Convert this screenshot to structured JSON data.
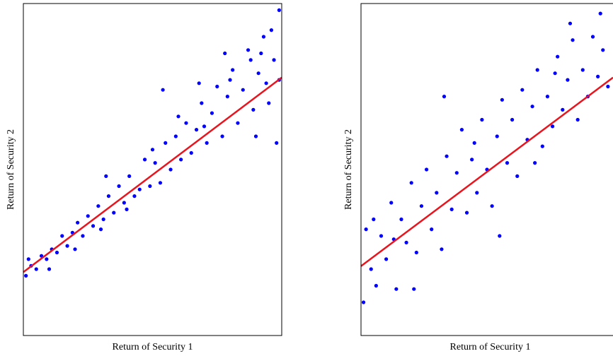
{
  "chart_data": [
    {
      "type": "scatter",
      "xlabel": "Return of Security 1",
      "ylabel": "Return of Security 2",
      "xlim": [
        0,
        10
      ],
      "ylim": [
        0,
        10
      ],
      "series": [
        {
          "type": "scatter",
          "color": "#0000ff",
          "x": [
            0.1,
            0.3,
            0.5,
            0.7,
            0.9,
            1.1,
            1.3,
            1.5,
            1.7,
            1.9,
            2.1,
            2.3,
            2.5,
            2.7,
            2.9,
            3.1,
            3.3,
            3.5,
            3.7,
            3.9,
            4.1,
            4.3,
            4.5,
            4.7,
            4.9,
            5.1,
            5.3,
            5.5,
            5.7,
            5.9,
            6.1,
            6.3,
            6.5,
            6.7,
            6.9,
            7.1,
            7.3,
            7.5,
            7.7,
            7.9,
            8.1,
            8.3,
            8.5,
            8.7,
            8.9,
            9.1,
            9.3,
            9.5,
            9.7,
            9.9,
            9.8,
            9.6,
            8.8,
            7.8,
            6.8,
            5.4,
            3.2,
            9.0,
            4.0,
            2.0,
            0.2,
            1.0,
            8.0,
            7.0,
            6.0,
            5.0,
            3.0,
            9.4,
            9.9,
            9.2
          ],
          "values": [
            1.8,
            2.1,
            2.0,
            2.4,
            2.3,
            2.6,
            2.5,
            3.0,
            2.7,
            3.1,
            3.4,
            3.0,
            3.6,
            3.3,
            3.9,
            3.5,
            4.2,
            3.7,
            4.5,
            4.0,
            4.8,
            4.2,
            4.4,
            5.3,
            4.5,
            5.2,
            4.6,
            5.8,
            5.0,
            6.0,
            5.3,
            6.4,
            5.5,
            6.2,
            7.0,
            5.8,
            6.7,
            7.5,
            6.0,
            7.2,
            8.0,
            6.4,
            7.4,
            8.6,
            6.8,
            7.9,
            9.0,
            7.0,
            8.3,
            9.8,
            5.8,
            9.2,
            8.3,
            8.5,
            7.6,
            7.4,
            4.8,
            6.0,
            3.8,
            2.6,
            2.3,
            2.0,
            7.7,
            6.3,
            6.6,
            5.6,
            3.2,
            7.6,
            7.7,
            8.5
          ]
        },
        {
          "type": "line",
          "color": "#e8141e",
          "x": [
            0,
            10
          ],
          "values": [
            1.91,
            7.77
          ]
        }
      ]
    },
    {
      "type": "scatter",
      "xlabel": "Return of Security 1",
      "ylabel": "Return of Security 2",
      "xlim": [
        0,
        10
      ],
      "ylim": [
        0,
        10
      ],
      "series": [
        {
          "type": "scatter",
          "color": "#0000ff",
          "x": [
            0.1,
            0.2,
            0.4,
            0.6,
            0.8,
            1.0,
            1.2,
            1.4,
            1.6,
            1.8,
            2.0,
            2.2,
            2.4,
            2.6,
            2.8,
            3.0,
            3.2,
            3.4,
            3.6,
            3.8,
            4.0,
            4.2,
            4.4,
            4.6,
            4.8,
            5.0,
            5.2,
            5.4,
            5.6,
            5.8,
            6.0,
            6.2,
            6.4,
            6.6,
            6.8,
            7.0,
            7.2,
            7.4,
            7.6,
            7.8,
            8.0,
            8.2,
            8.4,
            8.6,
            8.8,
            9.0,
            9.2,
            9.4,
            9.6,
            9.8,
            5.5,
            3.3,
            8.3,
            0.5,
            2.1,
            6.9,
            4.5,
            1.3,
            7.7,
            9.5
          ],
          "values": [
            1.0,
            3.2,
            2.0,
            1.5,
            3.0,
            2.3,
            4.0,
            1.4,
            3.5,
            2.8,
            4.6,
            2.5,
            3.9,
            5.0,
            3.2,
            4.3,
            2.6,
            5.4,
            3.8,
            4.9,
            6.2,
            3.7,
            5.3,
            4.3,
            6.5,
            5.0,
            3.9,
            6.0,
            7.1,
            5.2,
            6.5,
            4.8,
            7.4,
            5.9,
            6.9,
            8.0,
            5.7,
            7.2,
            6.3,
            8.4,
            6.8,
            7.7,
            8.9,
            6.5,
            8.0,
            7.2,
            9.0,
            7.8,
            8.6,
            7.5,
            3.0,
            7.2,
            9.4,
            3.5,
            1.4,
            5.2,
            5.8,
            2.9,
            7.9,
            9.7
          ]
        },
        {
          "type": "line",
          "color": "#e8141e",
          "x": [
            0,
            10
          ],
          "values": [
            2.09,
            7.77
          ]
        }
      ]
    }
  ]
}
